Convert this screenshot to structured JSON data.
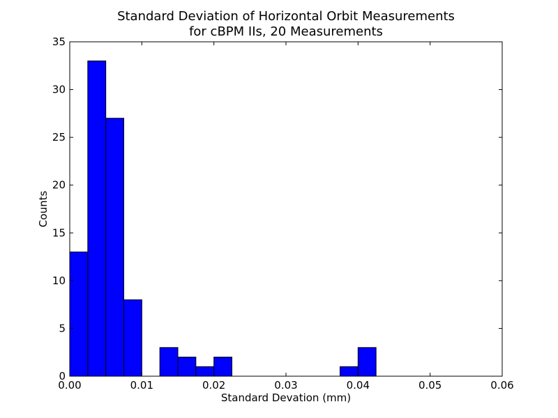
{
  "chart_data": {
    "type": "bar",
    "title": "Standard Deviation of Horizontal Orbit Measurements",
    "subtitle": "for cBPM IIs, 20 Measurements",
    "xlabel": "Standard Devation (mm)",
    "ylabel": "Counts",
    "xlim": [
      0.0,
      0.06
    ],
    "ylim": [
      0,
      35
    ],
    "x_ticks": [
      "0.00",
      "0.01",
      "0.02",
      "0.03",
      "0.04",
      "0.05",
      "0.06"
    ],
    "y_ticks": [
      "0",
      "5",
      "10",
      "15",
      "20",
      "25",
      "30",
      "35"
    ],
    "grid": false,
    "bar_color": "#0000ff",
    "bins": [
      {
        "x0": 0.0,
        "x1": 0.0025,
        "value": 13
      },
      {
        "x0": 0.0025,
        "x1": 0.005,
        "value": 33
      },
      {
        "x0": 0.005,
        "x1": 0.0075,
        "value": 27
      },
      {
        "x0": 0.0075,
        "x1": 0.01,
        "value": 8
      },
      {
        "x0": 0.0125,
        "x1": 0.015,
        "value": 3
      },
      {
        "x0": 0.015,
        "x1": 0.0175,
        "value": 2
      },
      {
        "x0": 0.0175,
        "x1": 0.02,
        "value": 1
      },
      {
        "x0": 0.02,
        "x1": 0.0225,
        "value": 2
      },
      {
        "x0": 0.0375,
        "x1": 0.04,
        "value": 1
      },
      {
        "x0": 0.04,
        "x1": 0.0425,
        "value": 3
      }
    ]
  }
}
